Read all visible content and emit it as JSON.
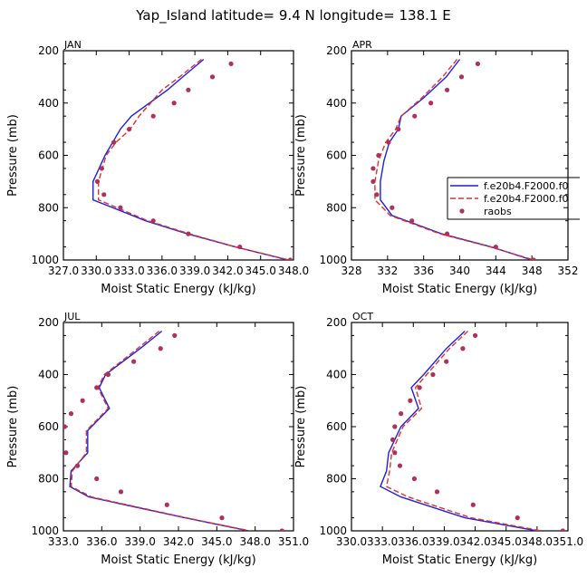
{
  "figure_title": "Yap_Island  latitude= 9.4 N longitude= 138.1 E",
  "legend": {
    "entries": [
      {
        "label": "f.e20b4.F2000.f0",
        "style": "solid",
        "color": "#1f1fdd"
      },
      {
        "label": "f.e20b4.F2000.f0",
        "style": "dashed",
        "color": "#e03030"
      },
      {
        "label": "raobs",
        "style": "marker",
        "color": "#b0305a"
      }
    ]
  },
  "colors": {
    "model1": "#1f1fdd",
    "model2": "#e03030",
    "obs": "#b0305a"
  },
  "chart_data": [
    {
      "type": "line",
      "title": "JAN",
      "xlabel": "Moist Static Energy (kJ/kg)",
      "ylabel": "Pressure (mb)",
      "xlim": [
        327.0,
        348.0
      ],
      "ylim": [
        1000,
        200
      ],
      "xticks": [
        327.0,
        330.0,
        333.0,
        336.0,
        339.0,
        342.0,
        345.0,
        348.0
      ],
      "xtick_labels": [
        "327.0",
        "330.0",
        "333.0",
        "336.0",
        "339.0",
        "342.0",
        "345.0",
        "348.0"
      ],
      "yticks": [
        200,
        400,
        600,
        800,
        1000
      ],
      "ytick_labels": [
        "200",
        "400",
        "600",
        "800",
        "1000"
      ],
      "series": [
        {
          "name": "f.e20b4.F2000.f0",
          "p": [
            233,
            300,
            350,
            450,
            500,
            550,
            600,
            700,
            770,
            850,
            900,
            950,
            1000
          ],
          "mse": [
            339.8,
            337.9,
            336.5,
            333.2,
            332.2,
            331.5,
            330.8,
            329.7,
            329.7,
            334.5,
            338.3,
            342.7,
            347.5
          ]
        },
        {
          "name": "f.e20b4.F2000.f0",
          "p": [
            233,
            300,
            350,
            450,
            500,
            550,
            600,
            700,
            770,
            850,
            900,
            950,
            1000
          ],
          "mse": [
            339.6,
            337.6,
            336.0,
            333.9,
            333.1,
            331.8,
            330.9,
            330.2,
            330.2,
            334.7,
            338.5,
            342.7,
            347.6
          ]
        },
        {
          "name": "raobs",
          "p": [
            250,
            300,
            350,
            400,
            450,
            500,
            550,
            650,
            700,
            750,
            800,
            850,
            900,
            950,
            1000
          ],
          "mse": [
            342.3,
            340.6,
            338.4,
            337.1,
            335.2,
            333.0,
            331.6,
            330.5,
            330.1,
            330.7,
            332.2,
            335.2,
            338.4,
            343.1,
            347.7
          ]
        }
      ]
    },
    {
      "type": "line",
      "title": "APR",
      "xlabel": "Moist Static Energy (kJ/kg)",
      "ylabel": "Pressure (mb)",
      "xlim": [
        328,
        352
      ],
      "ylim": [
        1000,
        200
      ],
      "xticks": [
        328,
        332,
        336,
        340,
        344,
        348,
        352
      ],
      "xtick_labels": [
        "328",
        "332",
        "336",
        "340",
        "344",
        "348",
        "352"
      ],
      "yticks": [
        200,
        400,
        600,
        800,
        1000
      ],
      "ytick_labels": [
        "200",
        "400",
        "600",
        "800",
        "1000"
      ],
      "series": [
        {
          "name": "f.e20b4.F2000.f0",
          "p": [
            233,
            300,
            380,
            450,
            500,
            550,
            620,
            700,
            770,
            830,
            900,
            950,
            1000
          ],
          "mse": [
            340.0,
            338.5,
            336.0,
            333.5,
            333.2,
            332.2,
            331.6,
            331.2,
            331.2,
            332.5,
            338.0,
            343.5,
            348.0
          ]
        },
        {
          "name": "f.e20b4.F2000.f0",
          "p": [
            233,
            300,
            380,
            450,
            500,
            550,
            620,
            700,
            770,
            830,
            900,
            950,
            1000
          ],
          "mse": [
            339.7,
            338.1,
            335.8,
            333.5,
            332.9,
            331.8,
            331.0,
            330.6,
            330.6,
            332.3,
            337.8,
            343.4,
            348.2
          ]
        },
        {
          "name": "raobs",
          "p": [
            250,
            300,
            350,
            400,
            450,
            500,
            550,
            600,
            650,
            700,
            750,
            800,
            850,
            900,
            950,
            1000
          ],
          "mse": [
            342.0,
            340.2,
            338.6,
            336.8,
            335.0,
            333.2,
            332.1,
            331.0,
            330.4,
            330.4,
            330.8,
            332.5,
            334.7,
            338.6,
            344.0,
            348.2
          ]
        }
      ]
    },
    {
      "type": "line",
      "title": "JUL",
      "xlabel": "Moist Static Energy (kJ/kg)",
      "ylabel": "Pressure (mb)",
      "xlim": [
        333.0,
        351.0
      ],
      "ylim": [
        1000,
        200
      ],
      "xticks": [
        333.0,
        336.0,
        339.0,
        342.0,
        345.0,
        348.0,
        351.0
      ],
      "xtick_labels": [
        "333.0",
        "336.0",
        "339.0",
        "342.0",
        "345.0",
        "348.0",
        "351.0"
      ],
      "yticks": [
        200,
        400,
        600,
        800,
        1000
      ],
      "ytick_labels": [
        "200",
        "400",
        "600",
        "800",
        "1000"
      ],
      "series": [
        {
          "name": "f.e20b4.F2000.f0",
          "p": [
            233,
            300,
            400,
            450,
            530,
            615,
            700,
            770,
            830,
            870,
            950,
            1000
          ],
          "mse": [
            340.7,
            339.0,
            336.3,
            335.8,
            336.6,
            334.9,
            334.9,
            333.6,
            333.5,
            335.0,
            342.5,
            347.5
          ]
        },
        {
          "name": "f.e20b4.F2000.f0",
          "p": [
            233,
            300,
            400,
            450,
            530,
            615,
            700,
            770,
            830,
            870,
            950,
            1000
          ],
          "mse": [
            340.5,
            338.8,
            336.2,
            335.7,
            336.5,
            334.8,
            334.8,
            333.7,
            333.6,
            335.2,
            342.6,
            347.6
          ]
        },
        {
          "name": "raobs",
          "p": [
            250,
            300,
            350,
            400,
            450,
            500,
            550,
            600,
            650,
            700,
            750,
            800,
            850,
            900,
            950,
            1000
          ],
          "mse": [
            341.7,
            340.6,
            338.5,
            336.5,
            335.6,
            334.5,
            333.6,
            333.1,
            332.9,
            333.2,
            334.1,
            335.6,
            337.5,
            341.1,
            345.4,
            350.1
          ]
        }
      ]
    },
    {
      "type": "line",
      "title": "OCT",
      "xlabel": "Moist Static Energy (kJ/kg)",
      "ylabel": "Pressure (mb)",
      "xlim": [
        330.0,
        351.0
      ],
      "ylim": [
        1000,
        200
      ],
      "xticks": [
        330.0,
        333.0,
        336.0,
        339.0,
        342.0,
        345.0,
        348.0,
        351.0
      ],
      "xtick_labels": [
        "330.0",
        "333.0",
        "336.0",
        "339.0",
        "342.0",
        "345.0",
        "348.0",
        "351.0"
      ],
      "yticks": [
        200,
        400,
        600,
        800,
        1000
      ],
      "ytick_labels": [
        "200",
        "400",
        "600",
        "800",
        "1000"
      ],
      "series": [
        {
          "name": "f.e20b4.F2000.f0",
          "p": [
            233,
            300,
            400,
            450,
            530,
            600,
            700,
            770,
            830,
            870,
            950,
            1000
          ],
          "mse": [
            341.0,
            339.2,
            337.0,
            335.8,
            336.5,
            334.8,
            333.6,
            333.4,
            332.8,
            334.8,
            341.0,
            348.0
          ]
        },
        {
          "name": "f.e20b4.F2000.f0",
          "p": [
            233,
            300,
            400,
            450,
            530,
            600,
            700,
            770,
            830,
            870,
            950,
            1000
          ],
          "mse": [
            341.3,
            339.5,
            337.3,
            336.2,
            336.8,
            335.0,
            333.9,
            333.7,
            333.4,
            335.5,
            341.6,
            348.4
          ]
        },
        {
          "name": "raobs",
          "p": [
            250,
            300,
            350,
            400,
            450,
            500,
            550,
            600,
            650,
            700,
            750,
            800,
            850,
            900,
            950,
            1000
          ],
          "mse": [
            342.0,
            340.8,
            339.2,
            337.9,
            336.6,
            335.7,
            334.8,
            334.2,
            334.0,
            334.2,
            334.7,
            336.1,
            338.3,
            341.8,
            346.1,
            350.5
          ]
        }
      ]
    }
  ]
}
